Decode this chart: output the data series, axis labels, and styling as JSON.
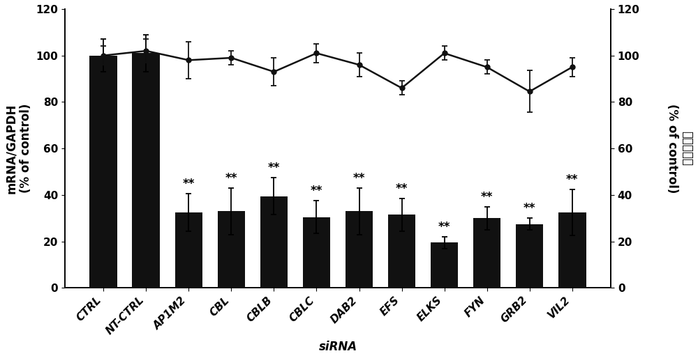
{
  "categories": [
    "CTRL",
    "NT-CTRL",
    "AP1M2",
    "CBL",
    "CBLB",
    "CBLC",
    "DAB2",
    "EFS",
    "ELKS",
    "FYN",
    "GRB2",
    "VIL2"
  ],
  "bar_values": [
    100,
    101,
    32.5,
    33,
    39.5,
    30.5,
    33,
    31.5,
    19.5,
    30,
    27.5,
    32.5
  ],
  "bar_errors": [
    7,
    8,
    8,
    10,
    8,
    7,
    10,
    7,
    2.5,
    5,
    2.5,
    10
  ],
  "line_values": [
    100,
    102,
    98,
    99,
    93,
    101,
    96,
    86,
    101,
    95,
    84.5,
    95
  ],
  "line_errors": [
    4,
    5,
    8,
    3,
    6,
    4,
    5,
    3,
    3,
    3,
    9,
    4
  ],
  "significance": [
    false,
    false,
    true,
    true,
    true,
    true,
    true,
    true,
    true,
    true,
    true,
    true
  ],
  "bar_color": "#111111",
  "line_color": "#111111",
  "ylabel_left_line1": "mRNA/GAPDH",
  "ylabel_left_line2": "(% of control)",
  "ylabel_right_chinese": "细胞病毒数",
  "ylabel_right_english": "(% of control)",
  "xlabel": "siRNA",
  "ylim": [
    0,
    120
  ],
  "yticks": [
    0,
    20,
    40,
    60,
    80,
    100,
    120
  ],
  "figsize": [
    10.0,
    5.14
  ],
  "dpi": 100,
  "axis_fontsize": 12,
  "tick_fontsize": 11,
  "sig_fontsize": 12,
  "ylabel_fontsize": 12,
  "sig_label": "**",
  "bar_width": 0.65
}
